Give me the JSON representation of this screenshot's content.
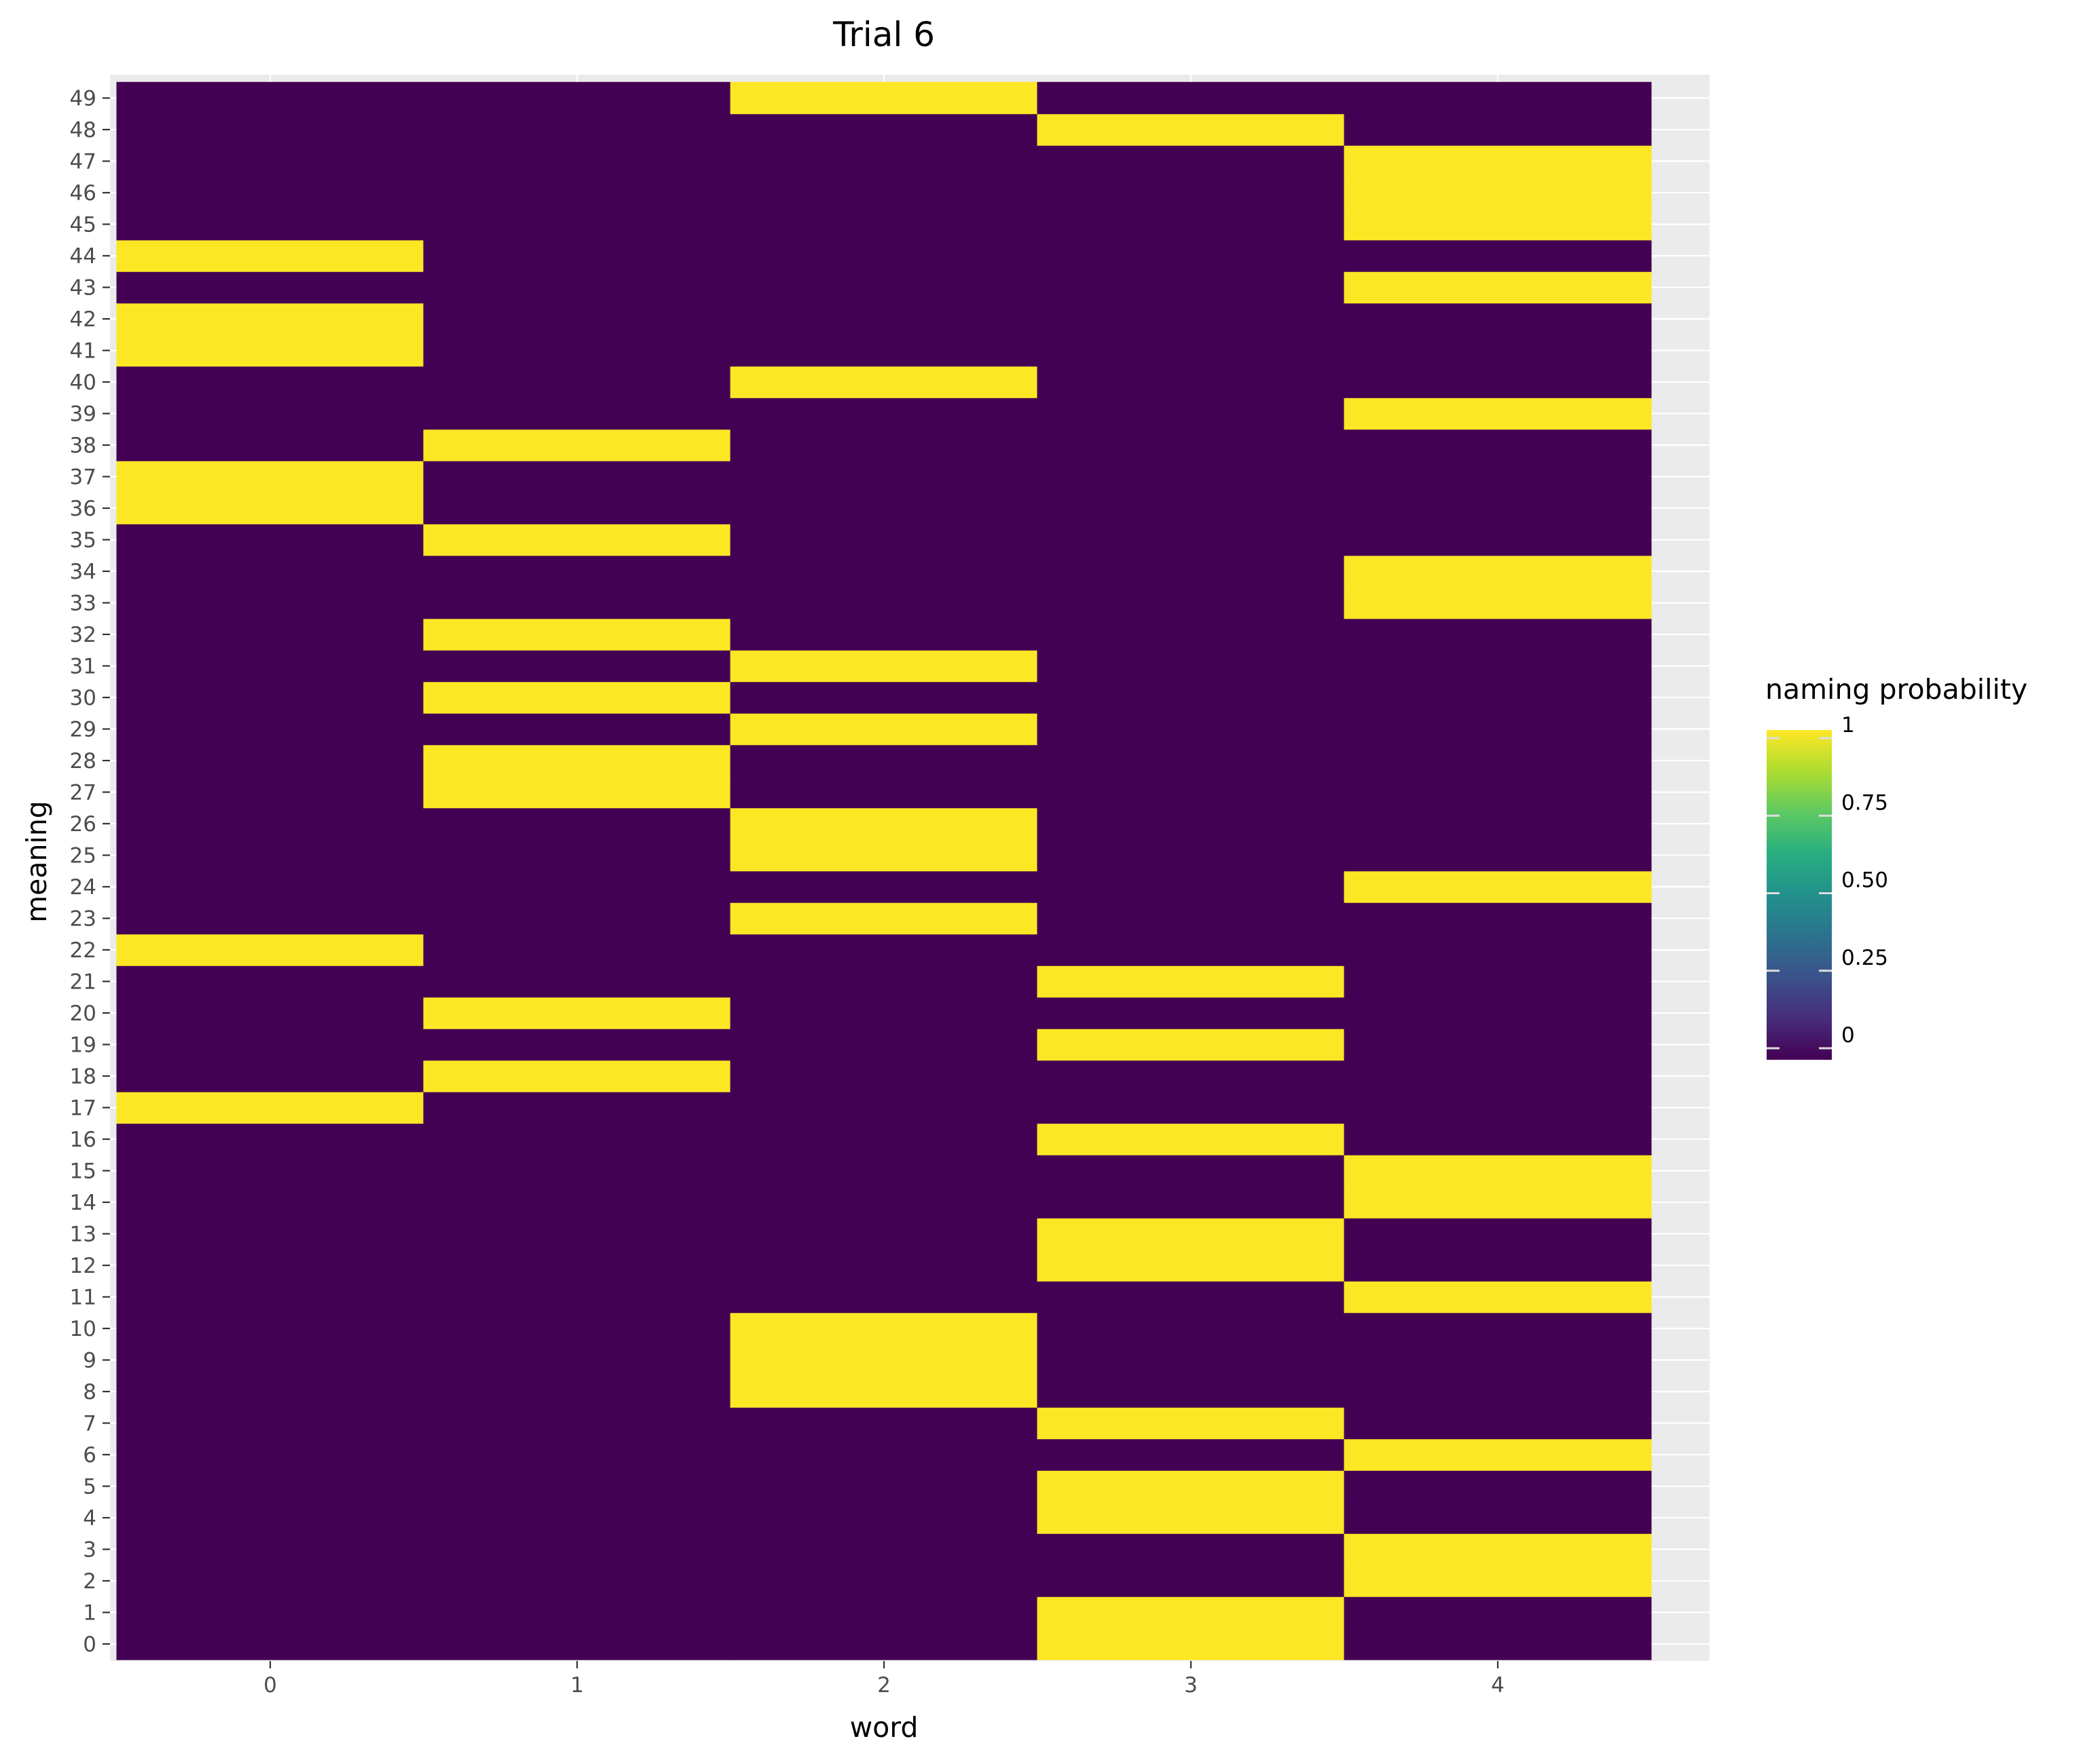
{
  "chart_data": {
    "type": "heatmap",
    "title": "Trial 6",
    "xlabel": "word",
    "ylabel": "meaning",
    "x_categories": [
      "0",
      "1",
      "2",
      "3",
      "4"
    ],
    "y_categories": [
      "0",
      "1",
      "2",
      "3",
      "4",
      "5",
      "6",
      "7",
      "8",
      "9",
      "10",
      "11",
      "12",
      "13",
      "14",
      "15",
      "16",
      "17",
      "18",
      "19",
      "20",
      "21",
      "22",
      "23",
      "24",
      "25",
      "26",
      "27",
      "28",
      "29",
      "30",
      "31",
      "32",
      "33",
      "34",
      "35",
      "36",
      "37",
      "38",
      "39",
      "40",
      "41",
      "42",
      "43",
      "44",
      "45",
      "46",
      "47",
      "48",
      "49"
    ],
    "assignment": [
      3,
      3,
      4,
      4,
      3,
      3,
      4,
      3,
      2,
      2,
      2,
      4,
      3,
      3,
      4,
      4,
      3,
      0,
      1,
      3,
      1,
      3,
      0,
      2,
      4,
      2,
      2,
      1,
      1,
      2,
      1,
      2,
      1,
      4,
      4,
      1,
      0,
      0,
      1,
      4,
      2,
      0,
      0,
      4,
      0,
      4,
      4,
      4,
      3,
      2
    ],
    "legend": {
      "title": "naming probability",
      "ticks": [
        "0",
        "0.25",
        "0.50",
        "0.75",
        "1"
      ],
      "range": [
        0,
        1
      ]
    },
    "colors": {
      "low": "#440154",
      "high": "#fde725",
      "panel": "#ebebeb",
      "grid": "#ffffff"
    }
  }
}
